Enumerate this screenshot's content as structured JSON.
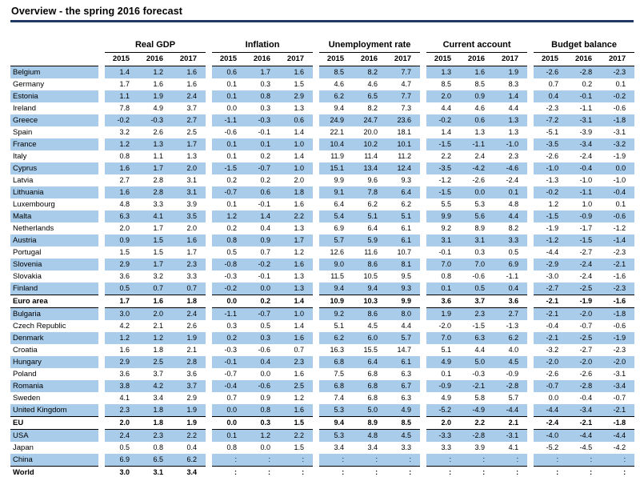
{
  "title": "Overview - the spring 2016 forecast",
  "colors": {
    "row_highlight": "#A8CCEA",
    "title_rule": "#1F3864"
  },
  "table": {
    "group_headers": [
      "Real GDP",
      "Inflation",
      "Unemployment rate",
      "Current account",
      "Budget balance"
    ],
    "years": [
      "2015",
      "2016",
      "2017"
    ],
    "rows": [
      {
        "name": "Belgium",
        "style": "blue",
        "values": [
          "1.4",
          "1.2",
          "1.6",
          "0.6",
          "1.7",
          "1.6",
          "8.5",
          "8.2",
          "7.7",
          "1.3",
          "1.6",
          "1.9",
          "-2.6",
          "-2.8",
          "-2.3"
        ]
      },
      {
        "name": "Germany",
        "style": "white",
        "values": [
          "1.7",
          "1.6",
          "1.6",
          "0.1",
          "0.3",
          "1.5",
          "4.6",
          "4.6",
          "4.7",
          "8.5",
          "8.5",
          "8.3",
          "0.7",
          "0.2",
          "0.1"
        ]
      },
      {
        "name": "Estonia",
        "style": "blue",
        "values": [
          "1.1",
          "1.9",
          "2.4",
          "0.1",
          "0.8",
          "2.9",
          "6.2",
          "6.5",
          "7.7",
          "2.0",
          "0.9",
          "1.4",
          "0.4",
          "-0.1",
          "-0.2"
        ]
      },
      {
        "name": "Ireland",
        "style": "white",
        "values": [
          "7.8",
          "4.9",
          "3.7",
          "0.0",
          "0.3",
          "1.3",
          "9.4",
          "8.2",
          "7.3",
          "4.4",
          "4.6",
          "4.4",
          "-2.3",
          "-1.1",
          "-0.6"
        ]
      },
      {
        "name": "Greece",
        "style": "blue",
        "values": [
          "-0.2",
          "-0.3",
          "2.7",
          "-1.1",
          "-0.3",
          "0.6",
          "24.9",
          "24.7",
          "23.6",
          "-0.2",
          "0.6",
          "1.3",
          "-7.2",
          "-3.1",
          "-1.8"
        ]
      },
      {
        "name": "Spain",
        "style": "white",
        "values": [
          "3.2",
          "2.6",
          "2.5",
          "-0.6",
          "-0.1",
          "1.4",
          "22.1",
          "20.0",
          "18.1",
          "1.4",
          "1.3",
          "1.3",
          "-5.1",
          "-3.9",
          "-3.1"
        ]
      },
      {
        "name": "France",
        "style": "blue",
        "values": [
          "1.2",
          "1.3",
          "1.7",
          "0.1",
          "0.1",
          "1.0",
          "10.4",
          "10.2",
          "10.1",
          "-1.5",
          "-1.1",
          "-1.0",
          "-3.5",
          "-3.4",
          "-3.2"
        ]
      },
      {
        "name": "Italy",
        "style": "white",
        "values": [
          "0.8",
          "1.1",
          "1.3",
          "0.1",
          "0.2",
          "1.4",
          "11.9",
          "11.4",
          "11.2",
          "2.2",
          "2.4",
          "2.3",
          "-2.6",
          "-2.4",
          "-1.9"
        ]
      },
      {
        "name": "Cyprus",
        "style": "blue",
        "values": [
          "1.6",
          "1.7",
          "2.0",
          "-1.5",
          "-0.7",
          "1.0",
          "15.1",
          "13.4",
          "12.4",
          "-3.5",
          "-4.2",
          "-4.6",
          "-1.0",
          "-0.4",
          "0.0"
        ]
      },
      {
        "name": "Latvia",
        "style": "white",
        "values": [
          "2.7",
          "2.8",
          "3.1",
          "0.2",
          "0.2",
          "2.0",
          "9.9",
          "9.6",
          "9.3",
          "-1.2",
          "-2.6",
          "-2.4",
          "-1.3",
          "-1.0",
          "-1.0"
        ]
      },
      {
        "name": "Lithuania",
        "style": "blue",
        "values": [
          "1.6",
          "2.8",
          "3.1",
          "-0.7",
          "0.6",
          "1.8",
          "9.1",
          "7.8",
          "6.4",
          "-1.5",
          "0.0",
          "0.1",
          "-0.2",
          "-1.1",
          "-0.4"
        ]
      },
      {
        "name": "Luxembourg",
        "style": "white",
        "values": [
          "4.8",
          "3.3",
          "3.9",
          "0.1",
          "-0.1",
          "1.6",
          "6.4",
          "6.2",
          "6.2",
          "5.5",
          "5.3",
          "4.8",
          "1.2",
          "1.0",
          "0.1"
        ]
      },
      {
        "name": "Malta",
        "style": "blue",
        "values": [
          "6.3",
          "4.1",
          "3.5",
          "1.2",
          "1.4",
          "2.2",
          "5.4",
          "5.1",
          "5.1",
          "9.9",
          "5.6",
          "4.4",
          "-1.5",
          "-0.9",
          "-0.6"
        ]
      },
      {
        "name": "Netherlands",
        "style": "white",
        "values": [
          "2.0",
          "1.7",
          "2.0",
          "0.2",
          "0.4",
          "1.3",
          "6.9",
          "6.4",
          "6.1",
          "9.2",
          "8.9",
          "8.2",
          "-1.9",
          "-1.7",
          "-1.2"
        ]
      },
      {
        "name": "Austria",
        "style": "blue",
        "values": [
          "0.9",
          "1.5",
          "1.6",
          "0.8",
          "0.9",
          "1.7",
          "5.7",
          "5.9",
          "6.1",
          "3.1",
          "3.1",
          "3.3",
          "-1.2",
          "-1.5",
          "-1.4"
        ]
      },
      {
        "name": "Portugal",
        "style": "white",
        "values": [
          "1.5",
          "1.5",
          "1.7",
          "0.5",
          "0.7",
          "1.2",
          "12.6",
          "11.6",
          "10.7",
          "-0.1",
          "0.3",
          "0.5",
          "-4.4",
          "-2.7",
          "-2.3"
        ]
      },
      {
        "name": "Slovenia",
        "style": "blue",
        "values": [
          "2.9",
          "1.7",
          "2.3",
          "-0.8",
          "-0.2",
          "1.6",
          "9.0",
          "8.6",
          "8.1",
          "7.0",
          "7.0",
          "6.9",
          "-2.9",
          "-2.4",
          "-2.1"
        ]
      },
      {
        "name": "Slovakia",
        "style": "white",
        "values": [
          "3.6",
          "3.2",
          "3.3",
          "-0.3",
          "-0.1",
          "1.3",
          "11.5",
          "10.5",
          "9.5",
          "0.8",
          "-0.6",
          "-1.1",
          "-3.0",
          "-2.4",
          "-1.6"
        ]
      },
      {
        "name": "Finland",
        "style": "blue",
        "values": [
          "0.5",
          "0.7",
          "0.7",
          "-0.2",
          "0.0",
          "1.3",
          "9.4",
          "9.4",
          "9.3",
          "0.1",
          "0.5",
          "0.4",
          "-2.7",
          "-2.5",
          "-2.3"
        ]
      },
      {
        "name": "Euro area",
        "style": "bold",
        "values": [
          "1.7",
          "1.6",
          "1.8",
          "0.0",
          "0.2",
          "1.4",
          "10.9",
          "10.3",
          "9.9",
          "3.6",
          "3.7",
          "3.6",
          "-2.1",
          "-1.9",
          "-1.6"
        ]
      },
      {
        "name": "Bulgaria",
        "style": "blue",
        "values": [
          "3.0",
          "2.0",
          "2.4",
          "-1.1",
          "-0.7",
          "1.0",
          "9.2",
          "8.6",
          "8.0",
          "1.9",
          "2.3",
          "2.7",
          "-2.1",
          "-2.0",
          "-1.8"
        ]
      },
      {
        "name": "Czech Republic",
        "style": "white",
        "values": [
          "4.2",
          "2.1",
          "2.6",
          "0.3",
          "0.5",
          "1.4",
          "5.1",
          "4.5",
          "4.4",
          "-2.0",
          "-1.5",
          "-1.3",
          "-0.4",
          "-0.7",
          "-0.6"
        ]
      },
      {
        "name": "Denmark",
        "style": "blue",
        "values": [
          "1.2",
          "1.2",
          "1.9",
          "0.2",
          "0.3",
          "1.6",
          "6.2",
          "6.0",
          "5.7",
          "7.0",
          "6.3",
          "6.2",
          "-2.1",
          "-2.5",
          "-1.9"
        ]
      },
      {
        "name": "Croatia",
        "style": "white",
        "values": [
          "1.6",
          "1.8",
          "2.1",
          "-0.3",
          "-0.6",
          "0.7",
          "16.3",
          "15.5",
          "14.7",
          "5.1",
          "4.4",
          "4.0",
          "-3.2",
          "-2.7",
          "-2.3"
        ]
      },
      {
        "name": "Hungary",
        "style": "blue",
        "values": [
          "2.9",
          "2.5",
          "2.8",
          "-0.1",
          "0.4",
          "2.3",
          "6.8",
          "6.4",
          "6.1",
          "4.9",
          "5.0",
          "4.5",
          "-2.0",
          "-2.0",
          "-2.0"
        ]
      },
      {
        "name": "Poland",
        "style": "white",
        "values": [
          "3.6",
          "3.7",
          "3.6",
          "-0.7",
          "0.0",
          "1.6",
          "7.5",
          "6.8",
          "6.3",
          "0.1",
          "-0.3",
          "-0.9",
          "-2.6",
          "-2.6",
          "-3.1"
        ]
      },
      {
        "name": "Romania",
        "style": "blue",
        "values": [
          "3.8",
          "4.2",
          "3.7",
          "-0.4",
          "-0.6",
          "2.5",
          "6.8",
          "6.8",
          "6.7",
          "-0.9",
          "-2.1",
          "-2.8",
          "-0.7",
          "-2.8",
          "-3.4"
        ]
      },
      {
        "name": "Sweden",
        "style": "white",
        "values": [
          "4.1",
          "3.4",
          "2.9",
          "0.7",
          "0.9",
          "1.2",
          "7.4",
          "6.8",
          "6.3",
          "4.9",
          "5.8",
          "5.7",
          "0.0",
          "-0.4",
          "-0.7"
        ]
      },
      {
        "name": "United Kingdom",
        "style": "blue",
        "values": [
          "2.3",
          "1.8",
          "1.9",
          "0.0",
          "0.8",
          "1.6",
          "5.3",
          "5.0",
          "4.9",
          "-5.2",
          "-4.9",
          "-4.4",
          "-4.4",
          "-3.4",
          "-2.1"
        ]
      },
      {
        "name": "EU",
        "style": "bold",
        "values": [
          "2.0",
          "1.8",
          "1.9",
          "0.0",
          "0.3",
          "1.5",
          "9.4",
          "8.9",
          "8.5",
          "2.0",
          "2.2",
          "2.1",
          "-2.4",
          "-2.1",
          "-1.8"
        ]
      },
      {
        "name": "USA",
        "style": "blue",
        "values": [
          "2.4",
          "2.3",
          "2.2",
          "0.1",
          "1.2",
          "2.2",
          "5.3",
          "4.8",
          "4.5",
          "-3.3",
          "-2.8",
          "-3.1",
          "-4.0",
          "-4.4",
          "-4.4"
        ]
      },
      {
        "name": "Japan",
        "style": "white",
        "values": [
          "0.5",
          "0.8",
          "0.4",
          "0.8",
          "0.0",
          "1.5",
          "3.4",
          "3.4",
          "3.3",
          "3.3",
          "3.9",
          "4.1",
          "-5.2",
          "-4.5",
          "-4.2"
        ]
      },
      {
        "name": "China",
        "style": "blue",
        "values": [
          "6.9",
          "6.5",
          "6.2",
          ":",
          ":",
          ":",
          ":",
          ":",
          ":",
          ":",
          ":",
          ":",
          ":",
          ":",
          ":"
        ]
      },
      {
        "name": "World",
        "style": "bold",
        "values": [
          "3.0",
          "3.1",
          "3.4",
          ":",
          ":",
          ":",
          ":",
          ":",
          ":",
          ":",
          ":",
          ":",
          ":",
          ":",
          ":"
        ]
      }
    ]
  }
}
